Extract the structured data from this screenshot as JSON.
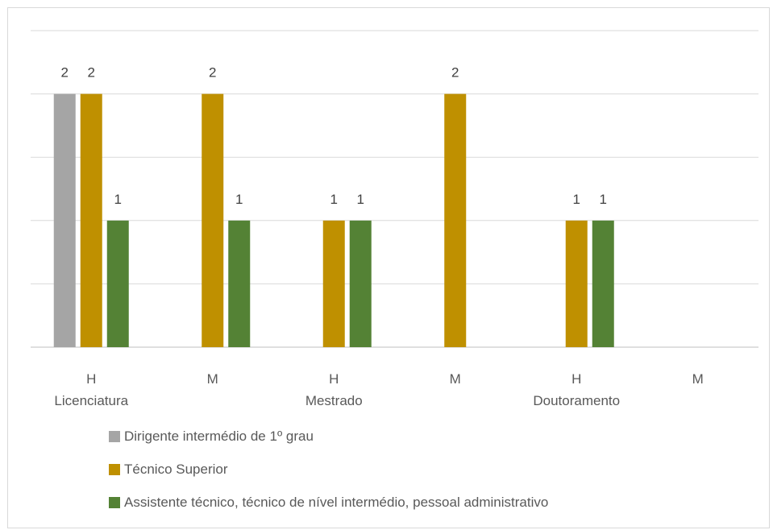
{
  "chart_data": {
    "type": "bar",
    "title": "",
    "xlabel": "",
    "ylabel": "",
    "ylim": [
      0,
      2.5
    ],
    "grid": true,
    "legend_position": "bottom",
    "categories": [
      "H",
      "M",
      "H",
      "M",
      "H",
      "M"
    ],
    "groups": [
      {
        "label": "Licenciatura",
        "categories": [
          "H",
          "M"
        ]
      },
      {
        "label": "Mestrado",
        "categories": [
          "H",
          "M"
        ]
      },
      {
        "label": "Doutoramento",
        "categories": [
          "H",
          "M"
        ]
      }
    ],
    "series": [
      {
        "name": "Dirigente intermédio de 1º grau",
        "color": "#a5a5a5",
        "values": [
          2,
          null,
          null,
          null,
          null,
          null
        ]
      },
      {
        "name": "Técnico Superior",
        "color": "#bf9000",
        "values": [
          2,
          2,
          1,
          2,
          1,
          null
        ]
      },
      {
        "name": "Assistente técnico, técnico de nível intermédio, pessoal administrativo",
        "color": "#548235",
        "values": [
          1,
          1,
          1,
          null,
          1,
          null
        ]
      }
    ]
  }
}
